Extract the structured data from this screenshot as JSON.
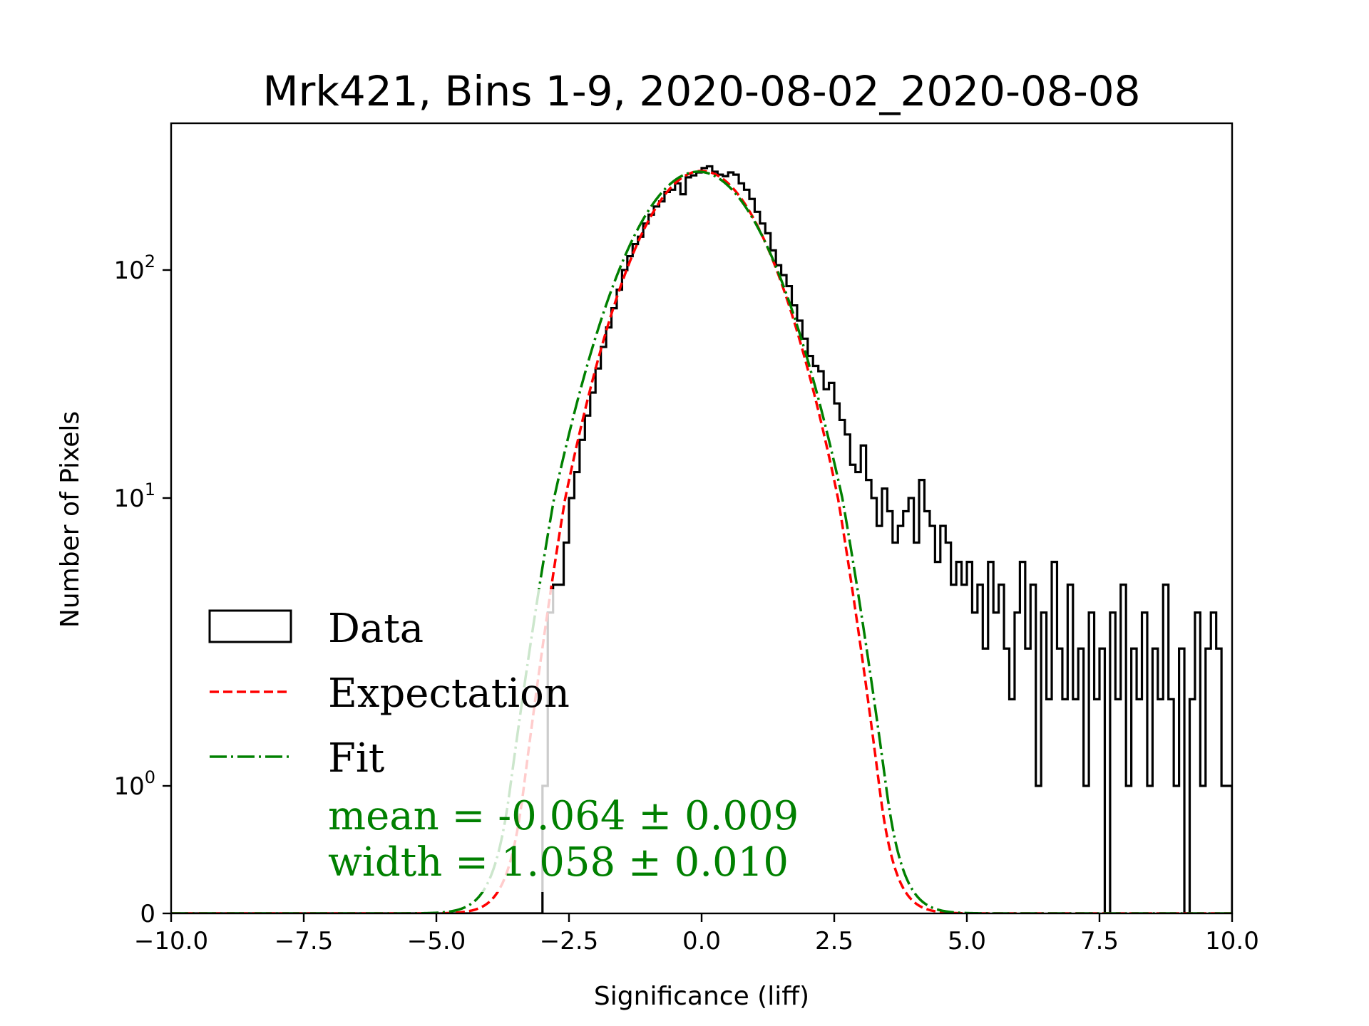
{
  "chart_data": {
    "type": "bar",
    "subtype": "step-histogram",
    "title": "Mrk421, Bins 1-9, 2020-08-02_2020-08-08",
    "xlabel": "Significance (liff)",
    "ylabel": "Number of Pixels",
    "xlim": [
      -10.0,
      10.0
    ],
    "ylim": [
      0,
      440
    ],
    "yscale": "symlog",
    "grid": false,
    "xticks": [
      {
        "value": -10.0,
        "label": "−10.0"
      },
      {
        "value": -7.5,
        "label": "−7.5"
      },
      {
        "value": -5.0,
        "label": "−5.0"
      },
      {
        "value": -2.5,
        "label": "−2.5"
      },
      {
        "value": 0.0,
        "label": "0.0"
      },
      {
        "value": 2.5,
        "label": "2.5"
      },
      {
        "value": 5.0,
        "label": "5.0"
      },
      {
        "value": 7.5,
        "label": "7.5"
      },
      {
        "value": 10.0,
        "label": "10.0"
      }
    ],
    "yticks": [
      {
        "value": 0,
        "base": "0",
        "exp": ""
      },
      {
        "value": 1,
        "base": "10",
        "exp": "0"
      },
      {
        "value": 10,
        "base": "10",
        "exp": "1"
      },
      {
        "value": 100,
        "base": "10",
        "exp": "2"
      }
    ],
    "histogram": {
      "name": "Data",
      "bin_start": -3.0,
      "bin_width": 0.1,
      "counts": [
        1,
        4,
        5,
        5,
        7,
        10,
        13,
        18,
        23,
        29,
        37,
        46,
        56,
        68,
        82,
        100,
        115,
        130,
        140,
        160,
        175,
        190,
        200,
        220,
        225,
        240,
        215,
        255,
        260,
        268,
        280,
        285,
        270,
        262,
        258,
        268,
        262,
        240,
        225,
        205,
        180,
        160,
        145,
        122,
        105,
        95,
        85,
        70,
        60,
        50,
        42,
        38,
        36,
        30,
        32,
        26,
        22,
        19,
        14,
        13,
        17,
        12,
        10,
        8,
        11,
        9,
        7,
        8,
        9,
        10,
        7,
        12,
        9,
        8,
        6,
        8,
        7,
        5,
        6,
        5,
        6,
        4,
        5,
        3,
        6,
        4,
        5,
        3,
        2,
        4,
        6,
        3,
        5,
        1,
        4,
        2,
        6,
        3,
        2,
        5,
        2,
        3,
        1,
        4,
        2,
        3,
        0,
        4,
        2,
        5,
        1,
        3,
        2,
        4,
        1,
        3,
        2,
        5,
        2,
        1,
        3,
        0,
        2,
        4,
        1,
        3,
        4,
        3,
        1,
        1
      ],
      "color": "#000000"
    },
    "series": [
      {
        "name": "Expectation",
        "kind": "gaussian",
        "mean": 0.0,
        "width": 1.0,
        "amplitude": 272,
        "color": "#ff0000",
        "linestyle": "dashed"
      },
      {
        "name": "Fit",
        "kind": "gaussian",
        "mean": -0.064,
        "width": 1.058,
        "amplitude": 270,
        "color": "#008000",
        "linestyle": "dashdot"
      }
    ],
    "legend": {
      "placement": "lower-left",
      "entries": [
        {
          "label": "Data",
          "kind": "box",
          "color": "#000000"
        },
        {
          "label": "Expectation",
          "kind": "dashed",
          "color": "#ff0000"
        },
        {
          "label": "Fit",
          "kind": "dashdot",
          "color": "#008000"
        }
      ]
    },
    "annotations": [
      {
        "text": "mean = -0.064 ± 0.009",
        "color": "#008000"
      },
      {
        "text": "width = 1.058 ± 0.010",
        "color": "#008000"
      }
    ]
  }
}
